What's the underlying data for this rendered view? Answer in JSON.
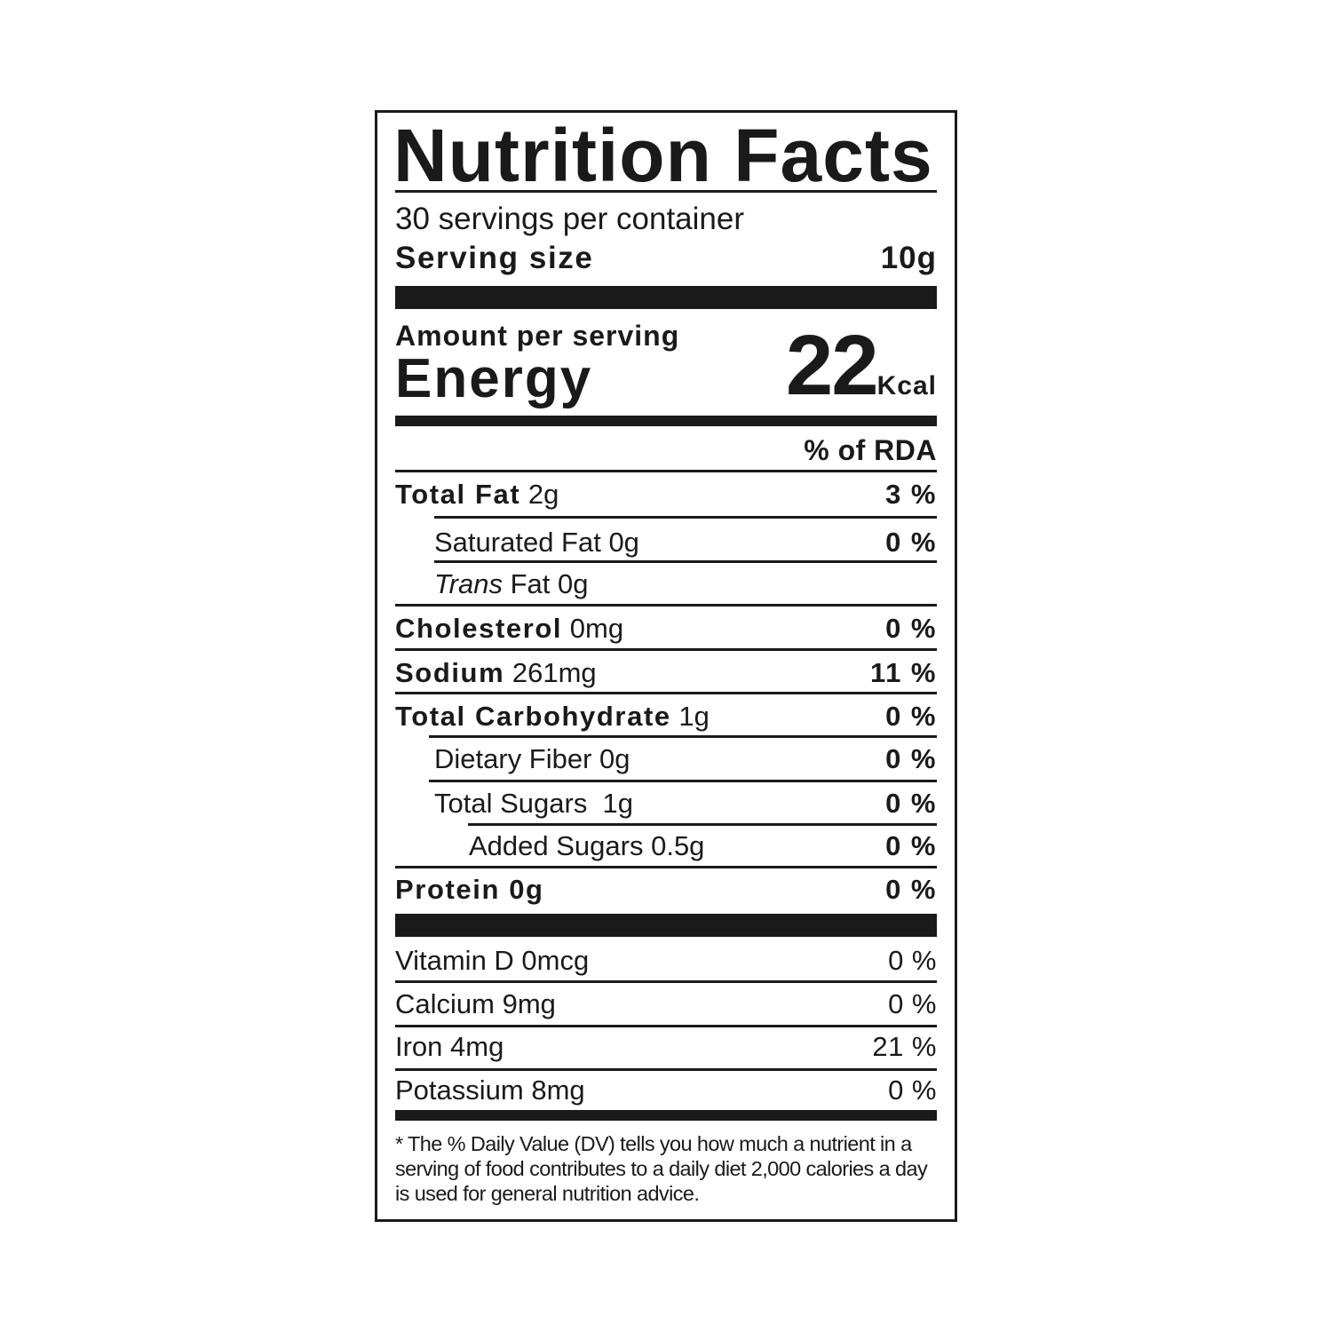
{
  "label": {
    "title": "Nutrition Facts",
    "servings_per_container": "30 servings per container",
    "serving_size_label": "Serving size",
    "serving_size_value": "10g",
    "amount_per_serving": "Amount per serving",
    "energy_label": "Energy",
    "energy_value": "22",
    "energy_unit": "Kcal",
    "rda_header": "% of RDA",
    "nutrients": [
      {
        "name": "Total Fat",
        "amount": "2g",
        "pct": "3 %"
      },
      {
        "name": "Saturated Fat 0g",
        "amount": "",
        "pct": "0 %"
      },
      {
        "name": "Trans",
        "amount": "Fat 0g",
        "pct": ""
      },
      {
        "name": "Cholesterol",
        "amount": "0mg",
        "pct": "0 %"
      },
      {
        "name": "Sodium",
        "amount": "261mg",
        "pct": "11 %"
      },
      {
        "name": "Total Carbohydrate",
        "amount": "1g",
        "pct": "0 %"
      },
      {
        "name": "Dietary Fiber 0g",
        "amount": "",
        "pct": "0 %"
      },
      {
        "name": "Total Sugars  1g",
        "amount": "",
        "pct": "0 %"
      },
      {
        "name": "Added Sugars 0.5g",
        "amount": "",
        "pct": "0 %"
      },
      {
        "name": "Protein 0g",
        "amount": "",
        "pct": "0 %"
      }
    ],
    "vitamins": [
      {
        "name": "Vitamin D 0mcg",
        "pct": "0 %"
      },
      {
        "name": "Calcium 9mg",
        "pct": "0 %"
      },
      {
        "name": "Iron 4mg",
        "pct": "21 %"
      },
      {
        "name": "Potassium 8mg",
        "pct": "0 %"
      }
    ],
    "footnote": "* The %  Daily Value (DV) tells you how much a nutrient in a serving of food contributes to a daily diet 2,000 calories a day is used for general nutrition advice."
  }
}
